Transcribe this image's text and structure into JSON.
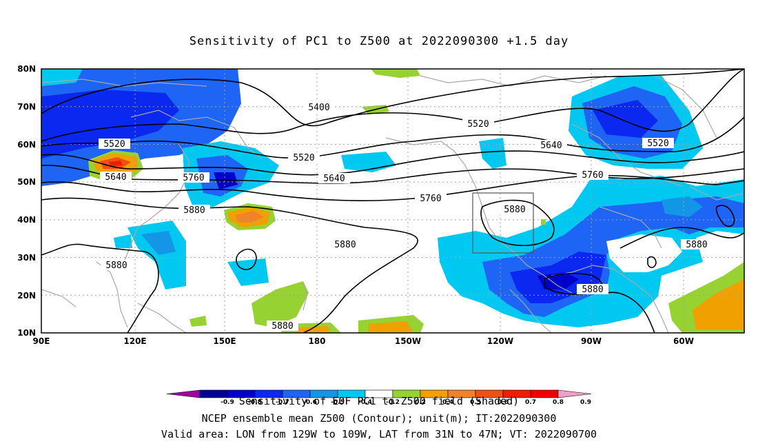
{
  "title": "Sensitivity of PC1 to Z500 at 2022090300 +1.5 day",
  "axes": {
    "lat_ticks": [
      "80N",
      "70N",
      "60N",
      "50N",
      "40N",
      "30N",
      "20N",
      "10N"
    ],
    "lon_ticks": [
      "90E",
      "120E",
      "150E",
      "180",
      "150W",
      "120W",
      "90W",
      "60W"
    ]
  },
  "contour_labels": [
    {
      "text": "5400"
    },
    {
      "text": "5520"
    },
    {
      "text": "5520"
    },
    {
      "text": "5520"
    },
    {
      "text": "5520"
    },
    {
      "text": "5640"
    },
    {
      "text": "5640"
    },
    {
      "text": "5640"
    },
    {
      "text": "5760"
    },
    {
      "text": "5760"
    },
    {
      "text": "5760"
    },
    {
      "text": "5880"
    },
    {
      "text": "5880"
    },
    {
      "text": "5880"
    },
    {
      "text": "5880"
    },
    {
      "text": "5880"
    },
    {
      "text": "5880"
    },
    {
      "text": "5880"
    }
  ],
  "colorbar": {
    "ticks": [
      "-0.9",
      "-0.8",
      "-0.7",
      "-0.6",
      "-0.5",
      "-0.4",
      "-0.2",
      "0.2",
      "0.4",
      "0.5",
      "0.6",
      "0.7",
      "0.8",
      "0.9"
    ],
    "colors": [
      "#a0009e",
      "#000096",
      "#0000c8",
      "#0a28f0",
      "#1e64f5",
      "#1496e6",
      "#00c8f0",
      "#ffffff",
      "#96d232",
      "#f0a000",
      "#f08228",
      "#f05014",
      "#f01e00",
      "#f00000",
      "#f0a0c8"
    ]
  },
  "captions": {
    "line1": "Sensitivity of EOF PC1 to Z500 field (Shaded)",
    "line2": "NCEP ensemble mean Z500 (Contour); unit(m); IT:2022090300",
    "line3": "Valid area: LON from 129W to 109W, LAT from 31N to 47N; VT: 2022090700"
  }
}
